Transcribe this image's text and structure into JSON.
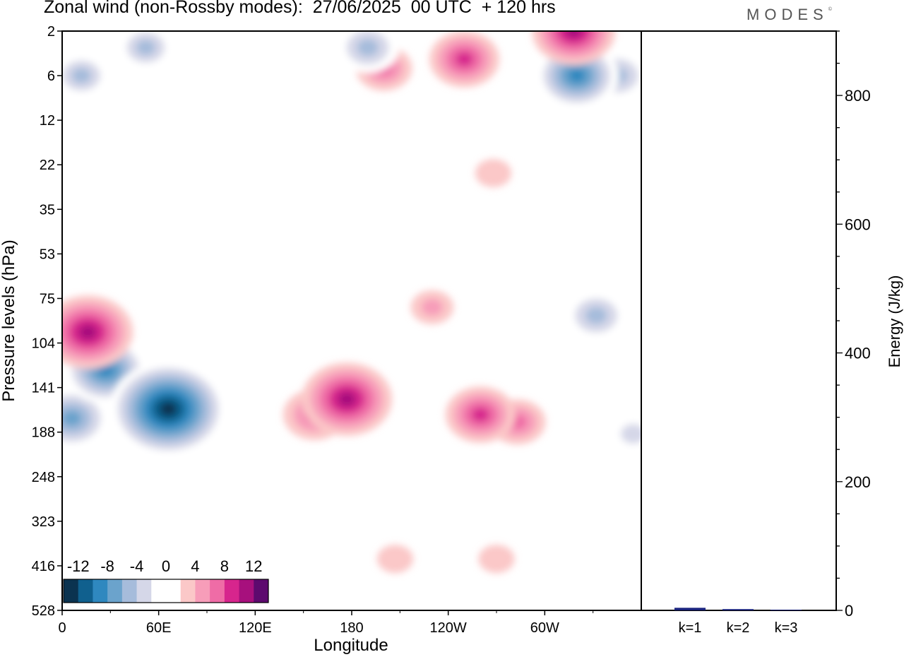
{
  "header": {
    "title": "Zonal wind (non-Rossby modes):  27/06/2025  00 UTC  + 120 hrs",
    "logo": "MODES",
    "logo_mark": "©"
  },
  "colors": {
    "scale": [
      "#0b3350",
      "#10608e",
      "#2f88bf",
      "#6ba3cc",
      "#a6bcdb",
      "#d5d7e8",
      "#ffffff",
      "#ffffff",
      "#fbc8c8",
      "#f79db9",
      "#ef6ca6",
      "#d7258d",
      "#a7107d",
      "#5d0a6e"
    ],
    "energy_bar": "#1a237e"
  },
  "chart_data": [
    {
      "type": "heatmap",
      "title": "Zonal wind (non-Rossby modes):  27/06/2025  00 UTC  + 120 hrs",
      "xlabel": "Longitude",
      "ylabel": "Pressure levels (hPa)",
      "x_ticks": [
        "0",
        "60E",
        "120E",
        "180",
        "120W",
        "60W"
      ],
      "x_tick_values": [
        0,
        60,
        120,
        180,
        240,
        300
      ],
      "xlim": [
        0,
        360
      ],
      "y_ticks": [
        "2",
        "6",
        "12",
        "22",
        "35",
        "53",
        "75",
        "104",
        "141",
        "188",
        "248",
        "323",
        "416",
        "528"
      ],
      "colorbar": {
        "labels": [
          "-12",
          "-8",
          "-4",
          "0",
          "4",
          "8",
          "12"
        ],
        "label_values": [
          -12,
          -8,
          -4,
          0,
          4,
          8,
          12
        ],
        "range": [
          -14,
          14
        ],
        "placement": "bottom-left inside"
      },
      "features": [
        {
          "lon": 66,
          "level": 162,
          "value": -14
        },
        {
          "lon": 27,
          "level": 125,
          "value": -9
        },
        {
          "lon": 6,
          "level": 172,
          "value": -8
        },
        {
          "lon": 16,
          "level": 96,
          "value": 10
        },
        {
          "lon": 177,
          "level": 152,
          "value": 10
        },
        {
          "lon": 157,
          "level": 168,
          "value": 6
        },
        {
          "lon": 260,
          "level": 168,
          "value": 7
        },
        {
          "lon": 283,
          "level": 176,
          "value": 5
        },
        {
          "lon": 320,
          "level": 6,
          "value": -9
        },
        {
          "lon": 345,
          "level": 6,
          "value": -6
        },
        {
          "lon": 318,
          "level": 2,
          "value": 9
        },
        {
          "lon": 250,
          "level": 4,
          "value": 7
        },
        {
          "lon": 200,
          "level": 5,
          "value": 5
        },
        {
          "lon": 332,
          "level": 85,
          "value": -6
        },
        {
          "lon": 12,
          "level": 6,
          "value": -5
        },
        {
          "lon": 52,
          "level": 3,
          "value": -5
        },
        {
          "lon": 190,
          "level": 3,
          "value": -6
        },
        {
          "lon": 230,
          "level": 80,
          "value": 3
        },
        {
          "lon": 268,
          "level": 24,
          "value": 2
        },
        {
          "lon": 207,
          "level": 400,
          "value": 2
        },
        {
          "lon": 270,
          "level": 400,
          "value": 2
        },
        {
          "lon": 355,
          "level": 190,
          "value": -4
        }
      ]
    },
    {
      "type": "bar",
      "ylabel": "Energy (J/kg)",
      "categories": [
        "k=1",
        "k=2",
        "k=3"
      ],
      "values": [
        4,
        2,
        1
      ],
      "ylim": [
        0,
        900
      ],
      "y_ticks": [
        0,
        200,
        400,
        600,
        800
      ],
      "grid": false
    }
  ]
}
